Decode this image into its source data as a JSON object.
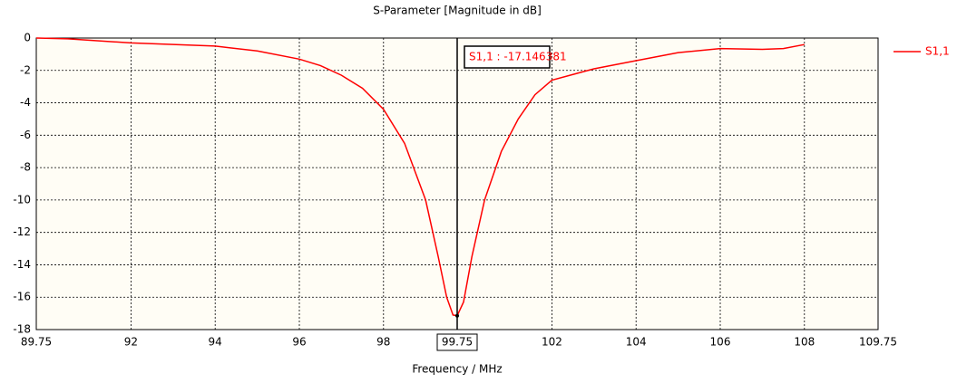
{
  "chart_data": {
    "type": "line",
    "title": "S-Parameter [Magnitude in dB]",
    "x_label": "Frequency / MHz",
    "xlim": [
      89.75,
      109.75
    ],
    "xticks": [
      89.75,
      92,
      94,
      96,
      98,
      99.75,
      102,
      104,
      106,
      108,
      109.75
    ],
    "ylim": [
      -18,
      0
    ],
    "yticks": [
      -18,
      -16,
      -14,
      -12,
      -10,
      -8,
      -6,
      -4,
      -2,
      0
    ],
    "grid": true,
    "legend": "right",
    "x": [
      89.75,
      90.5,
      92,
      94,
      95,
      96,
      96.5,
      97,
      97.5,
      98,
      98.5,
      99,
      99.3,
      99.5,
      99.65,
      99.75,
      99.9,
      100.1,
      100.4,
      100.8,
      101.2,
      101.6,
      102,
      103,
      104,
      105,
      106,
      107,
      107.5,
      108
    ],
    "series": [
      {
        "name": "S1,1",
        "color": "#ff0000",
        "values": [
          0,
          -0.05,
          -0.3,
          -0.5,
          -0.8,
          -1.3,
          -1.7,
          -2.3,
          -3.1,
          -4.4,
          -6.5,
          -10,
          -13.5,
          -16,
          -17.1,
          -17.146381,
          -16.3,
          -13.5,
          -10,
          -7,
          -5,
          -3.5,
          -2.6,
          -1.9,
          -1.4,
          -0.9,
          -0.65,
          -0.7,
          -0.65,
          -0.4
        ]
      }
    ],
    "marker": {
      "x": 99.75,
      "value": -17.146381,
      "label": "S1,1 : -17.146381"
    }
  }
}
